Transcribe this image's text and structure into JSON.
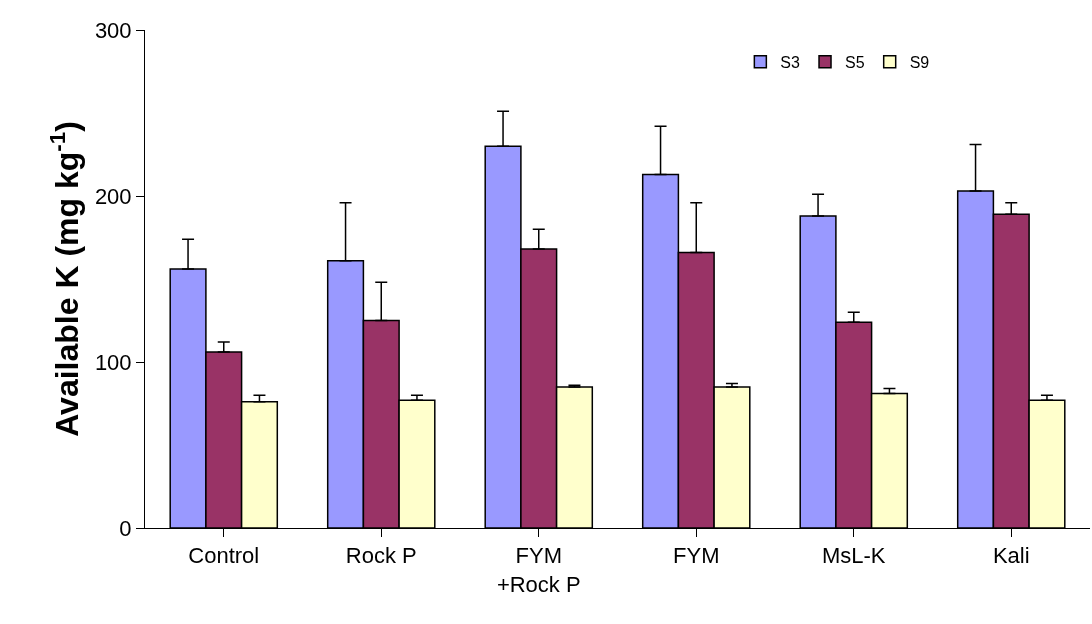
{
  "chart_data": {
    "type": "bar",
    "ylabel": "Available K (mg kg$^{-1}$)",
    "categories": [
      "Control",
      "Rock P",
      "FYM\n+Rock P",
      "FYM",
      "MsL-K",
      "Kali"
    ],
    "series": [
      {
        "name": "S3",
        "color": "#9999ff",
        "values": [
          156,
          161,
          230,
          213,
          188,
          203
        ],
        "errors": [
          18,
          35,
          21,
          29,
          13,
          28
        ]
      },
      {
        "name": "S5",
        "color": "#993366",
        "values": [
          106,
          125,
          168,
          166,
          124,
          189
        ],
        "errors": [
          6,
          23,
          12,
          30,
          6,
          7
        ]
      },
      {
        "name": "S9",
        "color": "#ffffcc",
        "values": [
          76,
          77,
          85,
          85,
          81,
          77
        ],
        "errors": [
          4,
          3,
          1,
          2,
          3,
          3
        ]
      }
    ],
    "ylim": [
      0,
      300
    ],
    "yticks": [
      0,
      100,
      200,
      300
    ],
    "grid": false,
    "legend": "top right"
  }
}
